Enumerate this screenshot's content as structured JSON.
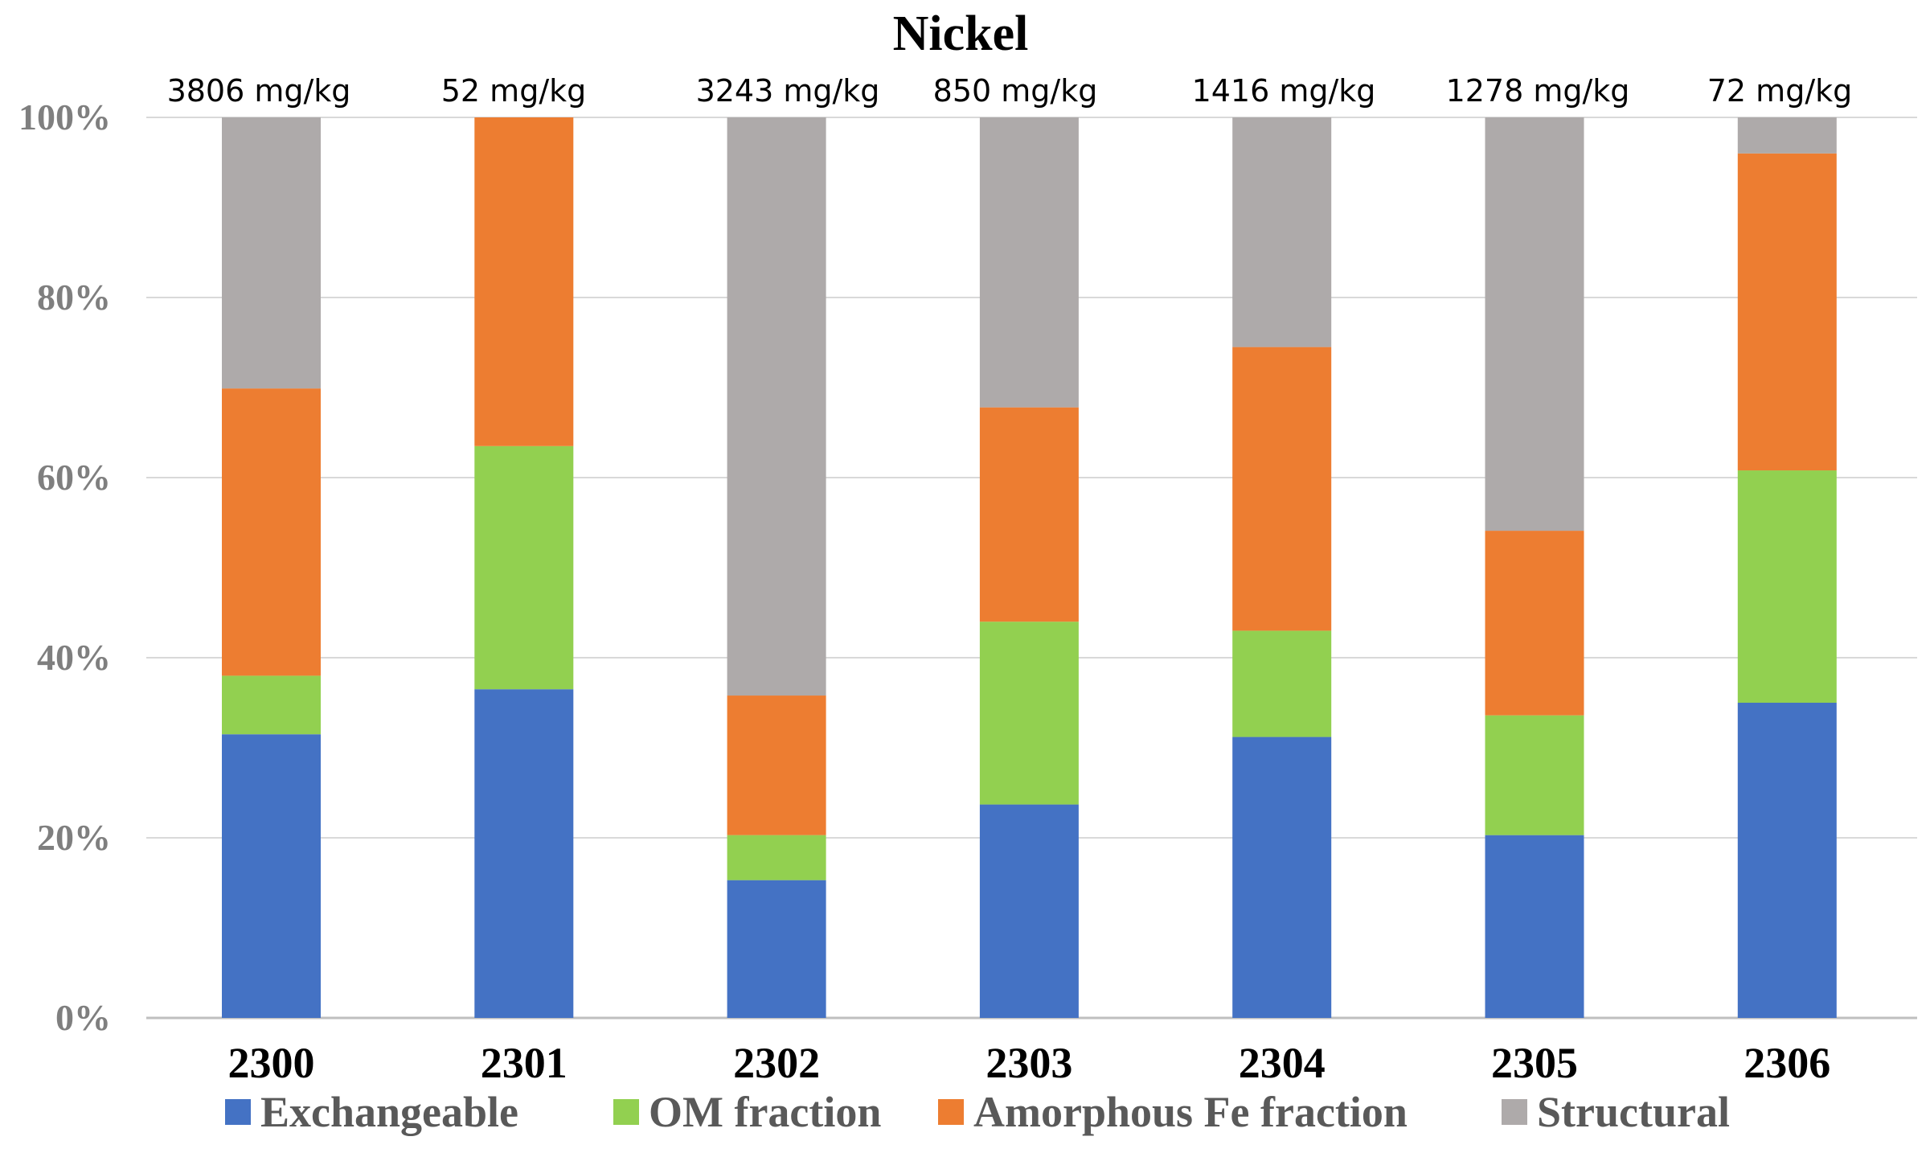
{
  "chart_data": {
    "type": "bar",
    "stacked": true,
    "title": "Nickel",
    "xlabel": "",
    "ylabel": "",
    "ylim": [
      0,
      100
    ],
    "yticks": [
      "0%",
      "20%",
      "40%",
      "60%",
      "80%",
      "100%"
    ],
    "categories": [
      "2300",
      "2301",
      "2302",
      "2303",
      "2304",
      "2305",
      "2306"
    ],
    "concentrations": [
      "3806 mg/kg",
      "52 mg/kg",
      "3243 mg/kg",
      "850 mg/kg",
      "1416 mg/kg",
      "1278 mg/kg",
      "72 mg/kg"
    ],
    "series": [
      {
        "name": "Exchangeable",
        "color": "#4472c4",
        "values": [
          31.5,
          36.5,
          15.3,
          23.7,
          31.2,
          20.3,
          35.0
        ]
      },
      {
        "name": "OM fraction",
        "color": "#92d050",
        "values": [
          6.5,
          27.0,
          5.0,
          20.3,
          11.8,
          13.3,
          25.8
        ]
      },
      {
        "name": "Amorphous Fe fraction",
        "color": "#ed7d31",
        "values": [
          31.9,
          36.5,
          15.5,
          23.8,
          31.5,
          20.5,
          35.2
        ]
      },
      {
        "name": "Structural",
        "color": "#aeaaaa",
        "values": [
          30.1,
          0.0,
          64.2,
          32.2,
          25.5,
          45.9,
          4.0
        ]
      }
    ],
    "legend_position": "bottom",
    "grid": true
  }
}
